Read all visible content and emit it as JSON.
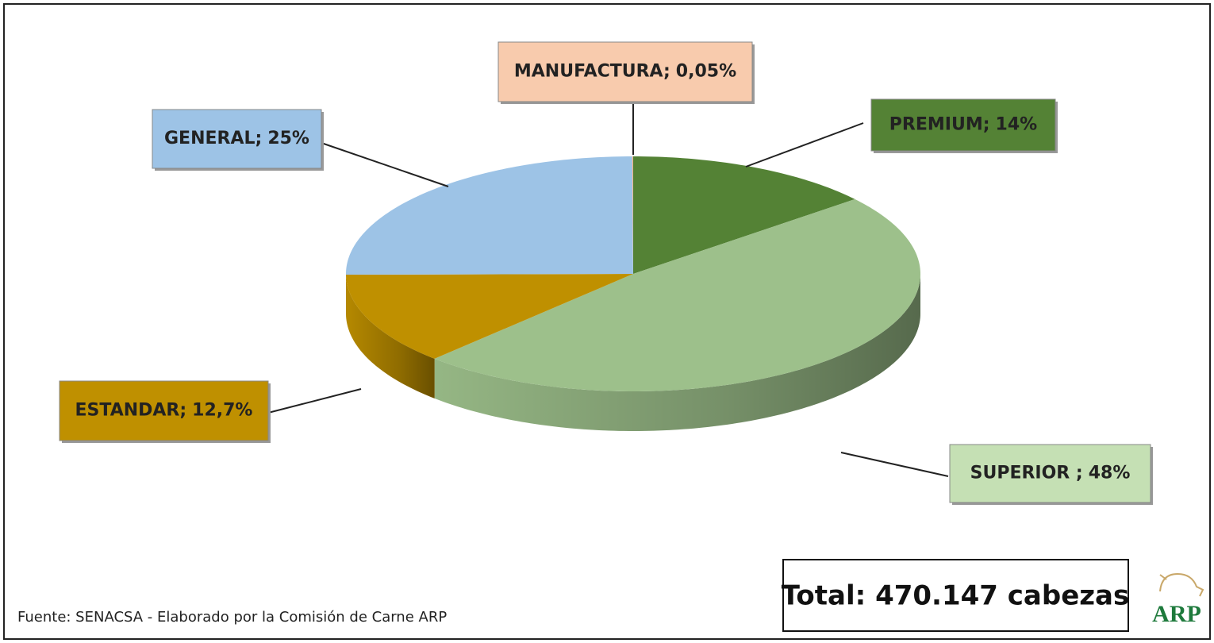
{
  "chart_data": {
    "type": "pie",
    "categories": [
      "PREMIUM;",
      "SUPERIOR ;",
      "ESTANDAR;",
      "GENERAL;",
      "MANUFACTURA;"
    ],
    "values": [
      14,
      48,
      12.7,
      25,
      0.05
    ],
    "value_labels": [
      "14%",
      "48%",
      "12,7%",
      "25%",
      "0,05%"
    ],
    "colors": [
      "#548235",
      "#9dc08b",
      "#bf9000",
      "#9dc3e6",
      "#f4b183"
    ],
    "label_colors": [
      "#548235",
      "#c5e0b4",
      "#bf9000",
      "#9dc3e6",
      "#f8cbad"
    ],
    "source": "Fuente: SENACSA  - Elaborado por la Comisión de Carne ARP",
    "total": "Total: 470.147 cabezas",
    "logo": "ARP"
  }
}
